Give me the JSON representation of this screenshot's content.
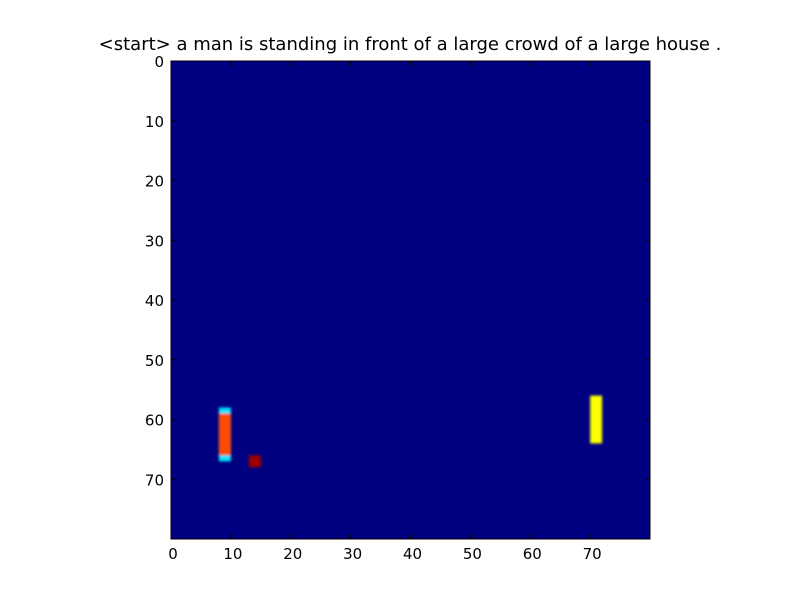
{
  "chart_data": {
    "type": "heatmap",
    "title": "<start> a man is standing in front of a large crowd of a large house .",
    "xlabel": "",
    "ylabel": "",
    "xlim": [
      0,
      80
    ],
    "ylim": [
      80,
      0
    ],
    "grid": false,
    "colormap": "jet",
    "background_value": 0.0,
    "x_ticks": [
      0,
      10,
      20,
      30,
      40,
      50,
      60,
      70
    ],
    "y_ticks": [
      0,
      10,
      20,
      30,
      40,
      50,
      60,
      70
    ],
    "hotspots": [
      {
        "name": "left-bar-edge",
        "x0": 8,
        "x1": 10,
        "y0": 58,
        "y1": 67,
        "value": 0.35
      },
      {
        "name": "left-bar-core",
        "x0": 8,
        "x1": 10,
        "y0": 59,
        "y1": 66,
        "value": 0.8
      },
      {
        "name": "small-spot",
        "x0": 13,
        "x1": 15,
        "y0": 66,
        "y1": 68,
        "value": 0.97
      },
      {
        "name": "right-bar",
        "x0": 70,
        "x1": 72,
        "y0": 56,
        "y1": 64,
        "value": 0.62
      }
    ]
  },
  "colors": {
    "background": "#ffffff",
    "heatmap_base": "#000080",
    "axis": "#000000"
  }
}
